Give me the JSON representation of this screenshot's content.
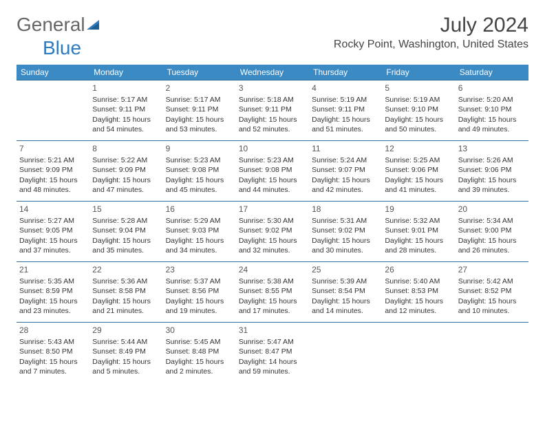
{
  "logo": {
    "text1": "General",
    "text2": "Blue"
  },
  "header": {
    "month_title": "July 2024",
    "location": "Rocky Point, Washington, United States"
  },
  "colors": {
    "header_bg": "#3b8ac4",
    "header_text": "#ffffff",
    "row_border": "#2d6a9e",
    "text": "#333333",
    "logo_gray": "#666666",
    "logo_blue": "#2f7bbf"
  },
  "day_headers": [
    "Sunday",
    "Monday",
    "Tuesday",
    "Wednesday",
    "Thursday",
    "Friday",
    "Saturday"
  ],
  "weeks": [
    [
      {
        "daynum": "",
        "lines": []
      },
      {
        "daynum": "1",
        "lines": [
          "Sunrise: 5:17 AM",
          "Sunset: 9:11 PM",
          "Daylight: 15 hours and 54 minutes."
        ]
      },
      {
        "daynum": "2",
        "lines": [
          "Sunrise: 5:17 AM",
          "Sunset: 9:11 PM",
          "Daylight: 15 hours and 53 minutes."
        ]
      },
      {
        "daynum": "3",
        "lines": [
          "Sunrise: 5:18 AM",
          "Sunset: 9:11 PM",
          "Daylight: 15 hours and 52 minutes."
        ]
      },
      {
        "daynum": "4",
        "lines": [
          "Sunrise: 5:19 AM",
          "Sunset: 9:11 PM",
          "Daylight: 15 hours and 51 minutes."
        ]
      },
      {
        "daynum": "5",
        "lines": [
          "Sunrise: 5:19 AM",
          "Sunset: 9:10 PM",
          "Daylight: 15 hours and 50 minutes."
        ]
      },
      {
        "daynum": "6",
        "lines": [
          "Sunrise: 5:20 AM",
          "Sunset: 9:10 PM",
          "Daylight: 15 hours and 49 minutes."
        ]
      }
    ],
    [
      {
        "daynum": "7",
        "lines": [
          "Sunrise: 5:21 AM",
          "Sunset: 9:09 PM",
          "Daylight: 15 hours and 48 minutes."
        ]
      },
      {
        "daynum": "8",
        "lines": [
          "Sunrise: 5:22 AM",
          "Sunset: 9:09 PM",
          "Daylight: 15 hours and 47 minutes."
        ]
      },
      {
        "daynum": "9",
        "lines": [
          "Sunrise: 5:23 AM",
          "Sunset: 9:08 PM",
          "Daylight: 15 hours and 45 minutes."
        ]
      },
      {
        "daynum": "10",
        "lines": [
          "Sunrise: 5:23 AM",
          "Sunset: 9:08 PM",
          "Daylight: 15 hours and 44 minutes."
        ]
      },
      {
        "daynum": "11",
        "lines": [
          "Sunrise: 5:24 AM",
          "Sunset: 9:07 PM",
          "Daylight: 15 hours and 42 minutes."
        ]
      },
      {
        "daynum": "12",
        "lines": [
          "Sunrise: 5:25 AM",
          "Sunset: 9:06 PM",
          "Daylight: 15 hours and 41 minutes."
        ]
      },
      {
        "daynum": "13",
        "lines": [
          "Sunrise: 5:26 AM",
          "Sunset: 9:06 PM",
          "Daylight: 15 hours and 39 minutes."
        ]
      }
    ],
    [
      {
        "daynum": "14",
        "lines": [
          "Sunrise: 5:27 AM",
          "Sunset: 9:05 PM",
          "Daylight: 15 hours and 37 minutes."
        ]
      },
      {
        "daynum": "15",
        "lines": [
          "Sunrise: 5:28 AM",
          "Sunset: 9:04 PM",
          "Daylight: 15 hours and 35 minutes."
        ]
      },
      {
        "daynum": "16",
        "lines": [
          "Sunrise: 5:29 AM",
          "Sunset: 9:03 PM",
          "Daylight: 15 hours and 34 minutes."
        ]
      },
      {
        "daynum": "17",
        "lines": [
          "Sunrise: 5:30 AM",
          "Sunset: 9:02 PM",
          "Daylight: 15 hours and 32 minutes."
        ]
      },
      {
        "daynum": "18",
        "lines": [
          "Sunrise: 5:31 AM",
          "Sunset: 9:02 PM",
          "Daylight: 15 hours and 30 minutes."
        ]
      },
      {
        "daynum": "19",
        "lines": [
          "Sunrise: 5:32 AM",
          "Sunset: 9:01 PM",
          "Daylight: 15 hours and 28 minutes."
        ]
      },
      {
        "daynum": "20",
        "lines": [
          "Sunrise: 5:34 AM",
          "Sunset: 9:00 PM",
          "Daylight: 15 hours and 26 minutes."
        ]
      }
    ],
    [
      {
        "daynum": "21",
        "lines": [
          "Sunrise: 5:35 AM",
          "Sunset: 8:59 PM",
          "Daylight: 15 hours and 23 minutes."
        ]
      },
      {
        "daynum": "22",
        "lines": [
          "Sunrise: 5:36 AM",
          "Sunset: 8:58 PM",
          "Daylight: 15 hours and 21 minutes."
        ]
      },
      {
        "daynum": "23",
        "lines": [
          "Sunrise: 5:37 AM",
          "Sunset: 8:56 PM",
          "Daylight: 15 hours and 19 minutes."
        ]
      },
      {
        "daynum": "24",
        "lines": [
          "Sunrise: 5:38 AM",
          "Sunset: 8:55 PM",
          "Daylight: 15 hours and 17 minutes."
        ]
      },
      {
        "daynum": "25",
        "lines": [
          "Sunrise: 5:39 AM",
          "Sunset: 8:54 PM",
          "Daylight: 15 hours and 14 minutes."
        ]
      },
      {
        "daynum": "26",
        "lines": [
          "Sunrise: 5:40 AM",
          "Sunset: 8:53 PM",
          "Daylight: 15 hours and 12 minutes."
        ]
      },
      {
        "daynum": "27",
        "lines": [
          "Sunrise: 5:42 AM",
          "Sunset: 8:52 PM",
          "Daylight: 15 hours and 10 minutes."
        ]
      }
    ],
    [
      {
        "daynum": "28",
        "lines": [
          "Sunrise: 5:43 AM",
          "Sunset: 8:50 PM",
          "Daylight: 15 hours and 7 minutes."
        ]
      },
      {
        "daynum": "29",
        "lines": [
          "Sunrise: 5:44 AM",
          "Sunset: 8:49 PM",
          "Daylight: 15 hours and 5 minutes."
        ]
      },
      {
        "daynum": "30",
        "lines": [
          "Sunrise: 5:45 AM",
          "Sunset: 8:48 PM",
          "Daylight: 15 hours and 2 minutes."
        ]
      },
      {
        "daynum": "31",
        "lines": [
          "Sunrise: 5:47 AM",
          "Sunset: 8:47 PM",
          "Daylight: 14 hours and 59 minutes."
        ]
      },
      {
        "daynum": "",
        "lines": []
      },
      {
        "daynum": "",
        "lines": []
      },
      {
        "daynum": "",
        "lines": []
      }
    ]
  ]
}
